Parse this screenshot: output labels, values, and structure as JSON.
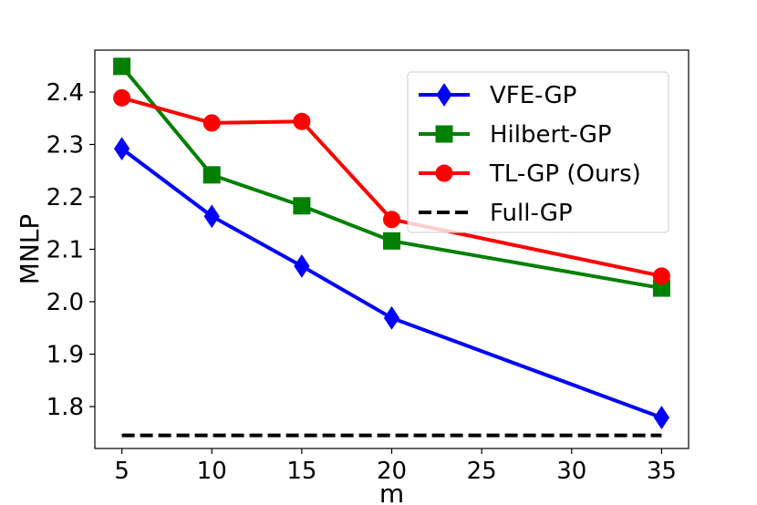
{
  "chart_data": {
    "type": "line",
    "title": "",
    "xlabel": "m",
    "ylabel": "MNLP",
    "xlim": [
      3.5,
      36.5
    ],
    "ylim": [
      1.72,
      2.48
    ],
    "xticks": [
      5,
      10,
      15,
      20,
      25,
      30,
      35
    ],
    "xtick_labels": [
      "5",
      "10",
      "15",
      "20",
      "25",
      "30",
      "35"
    ],
    "yticks": [
      1.8,
      1.9,
      2.0,
      2.1,
      2.2,
      2.3,
      2.4
    ],
    "ytick_labels": [
      "1.8",
      "1.9",
      "2.0",
      "2.1",
      "2.2",
      "2.3",
      "2.4"
    ],
    "grid": false,
    "legend_position": "top-right",
    "series": [
      {
        "name": "VFE-GP",
        "color": "#0000ff",
        "marker": "thin-diamond",
        "linestyle": "solid",
        "x": [
          5,
          10,
          15,
          20,
          35
        ],
        "y": [
          2.292,
          2.163,
          2.068,
          1.969,
          1.779
        ]
      },
      {
        "name": "Hilbert-GP",
        "color": "#008000",
        "marker": "square",
        "linestyle": "solid",
        "x": [
          5,
          10,
          15,
          20,
          35
        ],
        "y": [
          2.449,
          2.242,
          2.183,
          2.116,
          2.026
        ]
      },
      {
        "name": "TL-GP (Ours)",
        "color": "#ff0000",
        "marker": "circle",
        "linestyle": "solid",
        "x": [
          5,
          10,
          15,
          20,
          35
        ],
        "y": [
          2.389,
          2.341,
          2.344,
          2.157,
          2.049
        ]
      },
      {
        "name": "Full-GP",
        "color": "#000000",
        "marker": "none",
        "linestyle": "dashed",
        "x": [
          5,
          35
        ],
        "y": [
          1.745,
          1.745
        ]
      }
    ]
  }
}
